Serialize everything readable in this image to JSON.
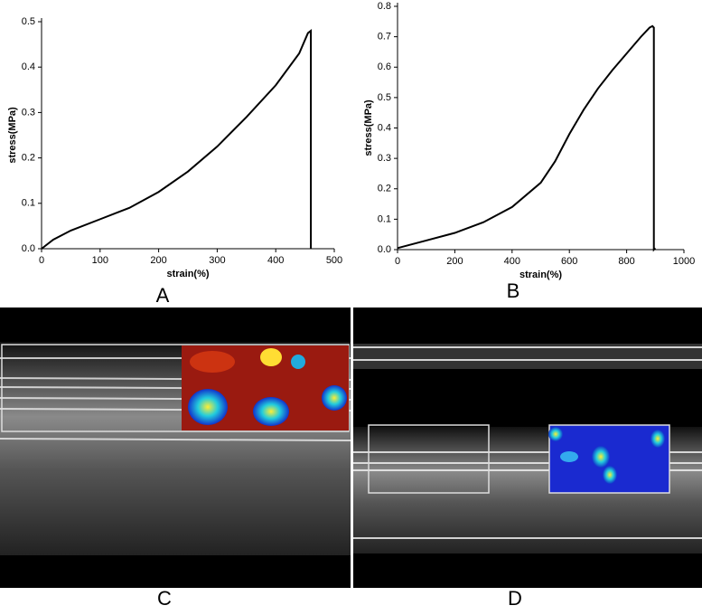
{
  "chart_data": [
    {
      "type": "line",
      "panel": "A",
      "xlabel": "strain(%)",
      "ylabel": "stress(MPa)",
      "x": [
        0,
        20,
        50,
        100,
        150,
        200,
        250,
        300,
        350,
        400,
        440,
        455,
        460,
        460
      ],
      "values": [
        0,
        0.02,
        0.04,
        0.065,
        0.09,
        0.125,
        0.17,
        0.225,
        0.29,
        0.36,
        0.43,
        0.475,
        0.48,
        0
      ],
      "color": "#000000",
      "xlim": [
        0,
        500
      ],
      "xticks": [
        0,
        100,
        200,
        300,
        400,
        500
      ],
      "ylim": [
        0,
        0.5
      ],
      "yticks": [
        {
          "value": 0,
          "label": "0.0"
        },
        0.1,
        0.2,
        0.3,
        0.4,
        0.5
      ]
    },
    {
      "type": "line",
      "panel": "B",
      "xlabel": "strain(%)",
      "ylabel": "stress(MPa)",
      "x": [
        0,
        100,
        200,
        300,
        400,
        500,
        550,
        600,
        650,
        700,
        750,
        800,
        850,
        880,
        890,
        895,
        895,
        900
      ],
      "values": [
        0.005,
        0.03,
        0.055,
        0.09,
        0.14,
        0.22,
        0.29,
        0.38,
        0.46,
        0.53,
        0.59,
        0.645,
        0.7,
        0.73,
        0.735,
        0.73,
        0,
        0.005
      ],
      "color": "#000000",
      "xlim": [
        0,
        1000
      ],
      "xticks": [
        0,
        200,
        400,
        600,
        800,
        1000
      ],
      "ylim": [
        0,
        0.8
      ],
      "yticks": [
        {
          "value": 0,
          "label": "0.0"
        },
        0.1,
        0.2,
        0.3,
        0.4,
        0.5,
        0.6,
        0.7,
        0.8
      ]
    }
  ],
  "images": [
    {
      "panel": "C"
    },
    {
      "panel": "D"
    }
  ]
}
